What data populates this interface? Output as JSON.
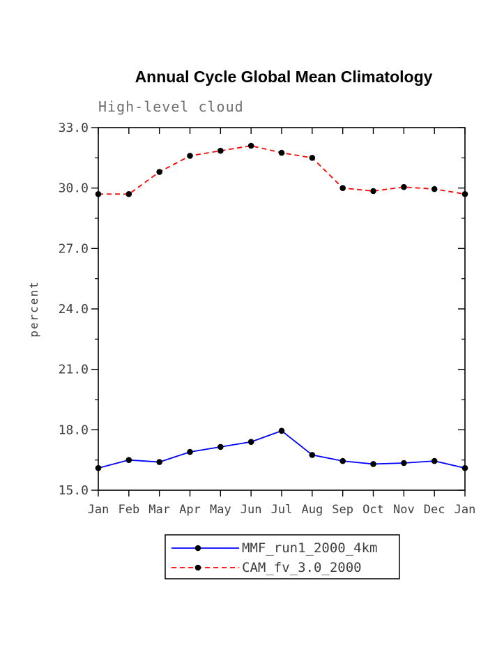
{
  "chart_data": {
    "type": "line",
    "title": "Annual Cycle Global Mean Climatology",
    "subtitle": "High-level cloud",
    "ylabel": "percent",
    "xlabel": "",
    "categories": [
      "Jan",
      "Feb",
      "Mar",
      "Apr",
      "May",
      "Jun",
      "Jul",
      "Aug",
      "Sep",
      "Oct",
      "Nov",
      "Dec",
      "Jan"
    ],
    "ylim": [
      15.0,
      33.0
    ],
    "yticks": [
      15.0,
      18.0,
      21.0,
      24.0,
      27.0,
      30.0,
      33.0
    ],
    "grid": false,
    "legend_position": "bottom",
    "series": [
      {
        "name": "MMF_run1_2000_4km",
        "color": "#0000ff",
        "line_style": "solid",
        "dash": "",
        "marker": "filled-circle",
        "values": [
          16.1,
          16.5,
          16.4,
          16.9,
          17.15,
          17.4,
          17.95,
          16.75,
          16.45,
          16.3,
          16.35,
          16.45,
          16.1
        ]
      },
      {
        "name": "CAM_fv_3.0_2000",
        "color": "#ff0000",
        "line_style": "dashed",
        "dash": "7,5",
        "marker": "filled-circle",
        "values": [
          29.7,
          29.7,
          30.8,
          31.6,
          31.85,
          32.1,
          31.75,
          31.5,
          30.0,
          29.85,
          30.05,
          29.95,
          29.7
        ]
      }
    ],
    "colors": {
      "frame": "#000000",
      "marker": "#000000",
      "axis_text": "#3f3f3f",
      "subtitle_text": "#6e6e6e",
      "title_text": "#000000"
    }
  }
}
